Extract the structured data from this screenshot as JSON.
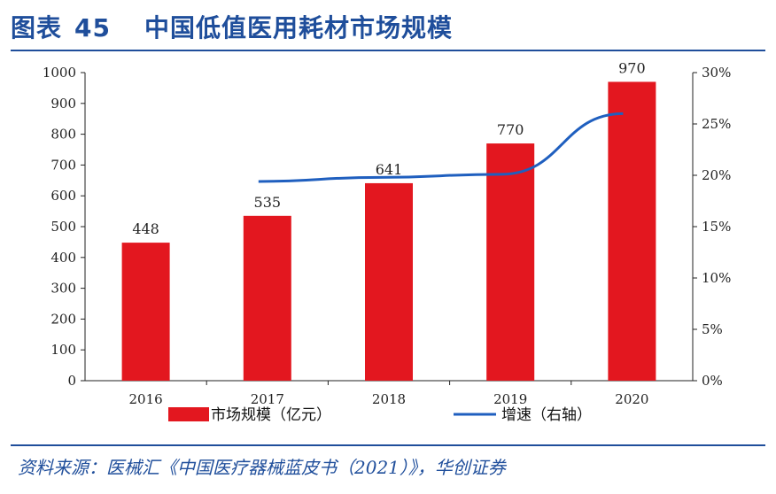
{
  "title": {
    "label": "图表",
    "number": "45",
    "text": "中国低值医用耗材市场规模"
  },
  "source": "资料来源：医械汇《中国医疗器械蓝皮书（2021）》，华创证券",
  "colors": {
    "bar": "#e3171f",
    "line": "#1f5fbf",
    "title": "#1f4e9b"
  },
  "chart_data": {
    "type": "bar",
    "categories": [
      "2016",
      "2017",
      "2018",
      "2019",
      "2020"
    ],
    "series": [
      {
        "name": "市场规模（亿元）",
        "type": "bar",
        "axis": "left",
        "values": [
          448,
          535,
          641,
          770,
          970
        ]
      },
      {
        "name": "增速（右轴）",
        "type": "line",
        "axis": "right",
        "values": [
          null,
          19.4,
          19.8,
          20.1,
          26.0
        ]
      }
    ],
    "left_axis": {
      "ylim": [
        0,
        1000
      ],
      "ticks": [
        "0",
        "100",
        "200",
        "300",
        "400",
        "500",
        "600",
        "700",
        "800",
        "900",
        "1000"
      ]
    },
    "right_axis": {
      "ylim": [
        0,
        30
      ],
      "ticks": [
        "0%",
        "5%",
        "10%",
        "15%",
        "20%",
        "25%",
        "30%"
      ]
    },
    "data_labels": [
      "448",
      "535",
      "641",
      "770",
      "970"
    ],
    "legend_position": "bottom",
    "grid": false
  }
}
